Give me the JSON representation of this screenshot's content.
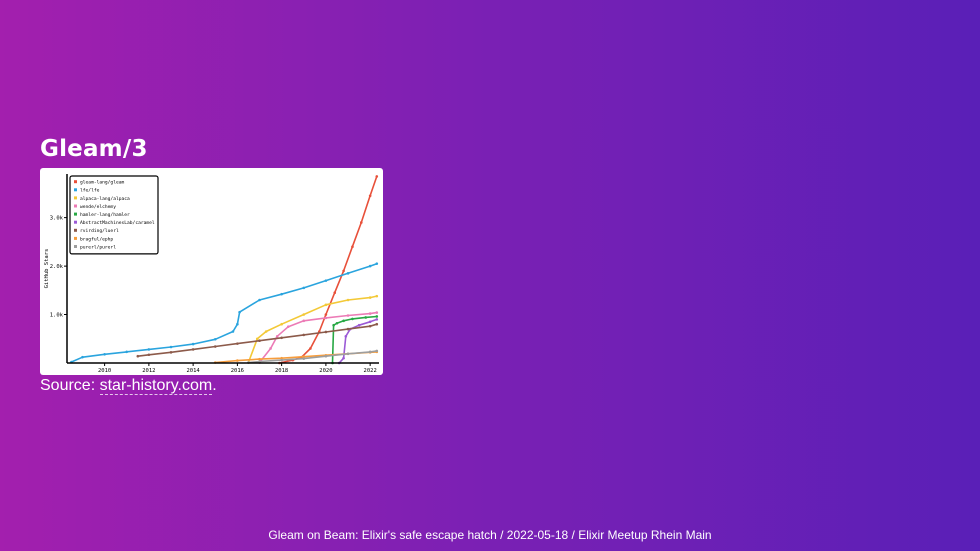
{
  "slide": {
    "title": "Gleam/3",
    "source_prefix": "Source: ",
    "source_link_text": "star-history.com",
    "source_suffix": ".",
    "footer": "Gleam on Beam: Elixir's safe escape hatch / 2022-05-18 / Elixir Meetup Rhein Main"
  },
  "chart_data": {
    "type": "line",
    "title": "",
    "xlabel": "",
    "ylabel": "GitHub Stars",
    "xlim": [
      2008.3,
      2022.4
    ],
    "ylim": [
      0,
      3900
    ],
    "x_ticks": [
      2010,
      2012,
      2014,
      2016,
      2018,
      2020,
      2022
    ],
    "x_tick_labels": [
      "2010",
      "2012",
      "2014",
      "2016",
      "2018",
      "2020",
      "2022"
    ],
    "y_ticks": [
      1000,
      2000,
      3000
    ],
    "y_tick_labels": [
      "1.0k",
      "2.0k",
      "3.0k"
    ],
    "grid": false,
    "legend_position": "top-left",
    "series": [
      {
        "name": "gleam-lang/gleam",
        "color": "#e8503a",
        "x": [
          2017.9,
          2018.5,
          2018.9,
          2019.3,
          2019.7,
          2020.0,
          2020.4,
          2020.8,
          2021.2,
          2021.6,
          2022.0,
          2022.3
        ],
        "y": [
          0,
          60,
          120,
          300,
          650,
          1000,
          1450,
          1900,
          2400,
          2900,
          3450,
          3850
        ]
      },
      {
        "name": "lfe/lfe",
        "color": "#2aa4de",
        "x": [
          2008.5,
          2009.0,
          2010.0,
          2011.0,
          2012.0,
          2013.0,
          2014.0,
          2015.0,
          2015.8,
          2016.0,
          2016.1,
          2017.0,
          2018.0,
          2019.0,
          2020.0,
          2021.0,
          2022.0,
          2022.3
        ],
        "y": [
          20,
          120,
          180,
          230,
          280,
          330,
          390,
          490,
          650,
          800,
          1050,
          1300,
          1420,
          1550,
          1700,
          1850,
          2000,
          2050
        ]
      },
      {
        "name": "alpaca-lang/alpaca",
        "color": "#f3c937",
        "x": [
          2016.5,
          2016.9,
          2017.3,
          2018.0,
          2019.0,
          2020.0,
          2021.0,
          2022.0,
          2022.3
        ],
        "y": [
          10,
          500,
          650,
          800,
          1000,
          1200,
          1300,
          1350,
          1380
        ]
      },
      {
        "name": "wende/elchemy",
        "color": "#ec7bb6",
        "x": [
          2017.0,
          2017.5,
          2017.8,
          2018.3,
          2019.0,
          2020.0,
          2021.0,
          2022.0,
          2022.3
        ],
        "y": [
          10,
          300,
          550,
          750,
          870,
          930,
          980,
          1020,
          1040
        ]
      },
      {
        "name": "hamler-lang/hamler",
        "color": "#27a844",
        "x": [
          2020.3,
          2020.35,
          2020.5,
          2020.8,
          2021.2,
          2021.8,
          2022.3
        ],
        "y": [
          0,
          780,
          820,
          870,
          910,
          940,
          960
        ]
      },
      {
        "name": "AbstractMachinesLab/caramel",
        "color": "#9b5ad6",
        "x": [
          2020.6,
          2020.8,
          2020.9,
          2021.1,
          2021.5,
          2022.0,
          2022.3
        ],
        "y": [
          0,
          100,
          550,
          700,
          780,
          850,
          900
        ]
      },
      {
        "name": "rvirding/luerl",
        "color": "#8c5a4a",
        "x": [
          2011.5,
          2012.0,
          2013.0,
          2014.0,
          2015.0,
          2016.0,
          2017.0,
          2018.0,
          2019.0,
          2020.0,
          2021.0,
          2022.0,
          2022.3
        ],
        "y": [
          140,
          170,
          220,
          280,
          340,
          400,
          460,
          520,
          580,
          640,
          700,
          760,
          800
        ]
      },
      {
        "name": "bragful/ephp",
        "color": "#f79d3c",
        "x": [
          2015.0,
          2016.0,
          2017.0,
          2018.0,
          2019.0,
          2020.0,
          2021.0,
          2022.0,
          2022.3
        ],
        "y": [
          10,
          50,
          80,
          100,
          130,
          160,
          190,
          220,
          230
        ]
      },
      {
        "name": "purerl/purerl",
        "color": "#9e9e9e",
        "x": [
          2016.5,
          2017.0,
          2018.0,
          2019.0,
          2020.0,
          2021.0,
          2022.0,
          2022.3
        ],
        "y": [
          10,
          30,
          60,
          90,
          140,
          190,
          230,
          250
        ]
      }
    ]
  }
}
